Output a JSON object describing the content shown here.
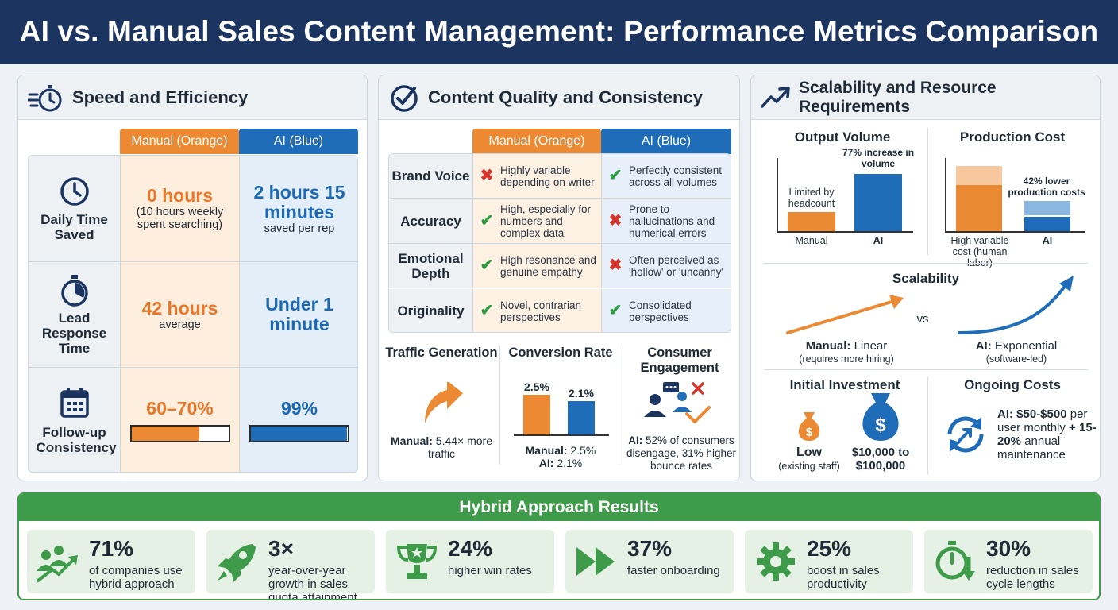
{
  "title": "AI vs. Manual Sales Content Management: Performance Metrics Comparison",
  "colors": {
    "orange": "#ec8a33",
    "blue": "#1f6db8",
    "navy": "#1b3560",
    "green": "#3e9b4a"
  },
  "speed": {
    "title": "Speed and Efficiency",
    "icon": "stopwatch-speed-icon",
    "col_manual": "Manual (Orange)",
    "col_ai": "AI (Blue)",
    "rows": [
      {
        "label": "Daily Time Saved",
        "icon": "clock-icon",
        "manual_big": "0 hours",
        "manual_small": "(10 hours weekly spent searching)",
        "ai_big": "2 hours 15 minutes",
        "ai_small": "saved per rep"
      },
      {
        "label": "Lead Response Time",
        "icon": "stopwatch-icon",
        "manual_big": "42 hours",
        "manual_small": "average",
        "ai_big": "Under 1 minute",
        "ai_small": ""
      },
      {
        "label": "Follow-up Consistency",
        "icon": "calendar-icon",
        "manual_big": "60–70%",
        "ai_big": "99%",
        "manual_fill": 0.7,
        "ai_fill": 0.99
      }
    ]
  },
  "quality": {
    "title": "Content Quality and Consistency",
    "icon": "check-circle-icon",
    "col_manual": "Manual (Orange)",
    "col_ai": "AI (Blue)",
    "rows": [
      {
        "label": "Brand Voice",
        "manual": "Highly variable depending on writer",
        "manual_mark": "cross",
        "ai": "Perfectly consistent across all volumes",
        "ai_mark": "check"
      },
      {
        "label": "Accuracy",
        "manual": "High, especially for numbers and complex data",
        "manual_mark": "check",
        "ai": "Prone to hallucinations and numerical errors",
        "ai_mark": "cross"
      },
      {
        "label": "Emotional Depth",
        "manual": "High resonance and genuine empathy",
        "manual_mark": "check",
        "ai": "Often perceived as 'hollow' or 'uncanny'",
        "ai_mark": "cross"
      },
      {
        "label": "Originality",
        "manual": "Novel, contrarian perspectives",
        "manual_mark": "check",
        "ai": "Consolidated perspectives",
        "ai_mark": "check"
      }
    ],
    "traffic": {
      "title": "Traffic Generation",
      "note_bold": "Manual:",
      "note": "5.44× more traffic"
    },
    "conversion": {
      "title": "Conversion Rate",
      "note_manual_bold": "Manual:",
      "note_manual": "2.5%",
      "note_ai_bold": "AI:",
      "note_ai": "2.1%"
    },
    "engagement": {
      "title": "Consumer Engagement",
      "note_bold": "AI:",
      "note": "52% of consumers disengage, 31% higher bounce rates"
    }
  },
  "chart_data": [
    {
      "type": "bar",
      "categories": [
        "Manual",
        "AI"
      ],
      "values": [
        2.5,
        2.1
      ],
      "data_labels": [
        "2.5%",
        "2.1%"
      ]
    }
  ],
  "scalability": {
    "title": "Scalability and Resource Requirements",
    "icon": "trend-up-icon",
    "output_volume": {
      "title": "Output Volume",
      "manual_label": "Limited by headcount",
      "ai_label": "77% increase in volume",
      "cat_manual": "Manual",
      "cat_ai": "AI"
    },
    "production_cost": {
      "title": "Production Cost",
      "ai_label": "42% lower production costs",
      "cat_manual": "High variable cost (human labor)",
      "cat_ai": "AI"
    },
    "scalability": {
      "title": "Scalability",
      "vs": "vs",
      "manual_bold": "Manual:",
      "manual": "Linear",
      "manual_note": "(requires more hiring)",
      "ai_bold": "AI:",
      "ai": "Exponential",
      "ai_note": "(software-led)"
    },
    "initial_investment": {
      "title": "Initial Investment",
      "low_label": "Low",
      "low_note": "(existing staff)",
      "high_label": "$10,000 to $100,000"
    },
    "ongoing_costs": {
      "title": "Ongoing Costs",
      "text_bold": "AI: $50-$500",
      "text": "per user monthly",
      "text2_bold": "+ 15-20%",
      "text2": "annual maintenance"
    }
  },
  "hybrid": {
    "title": "Hybrid Approach Results",
    "cards": [
      {
        "value": "71%",
        "desc": "of companies use hybrid approach",
        "icon": "people-growth-icon"
      },
      {
        "value": "3×",
        "desc": "year-over-year growth in sales quota attainment",
        "icon": "rocket-icon"
      },
      {
        "value": "24%",
        "desc": "higher win rates",
        "icon": "trophy-icon"
      },
      {
        "value": "37%",
        "desc": "faster onboarding",
        "icon": "fast-forward-icon"
      },
      {
        "value": "25%",
        "desc": "boost in sales productivity",
        "icon": "gear-icon"
      },
      {
        "value": "30%",
        "desc": "reduction in sales cycle lengths",
        "icon": "stopwatch-down-icon"
      }
    ]
  }
}
